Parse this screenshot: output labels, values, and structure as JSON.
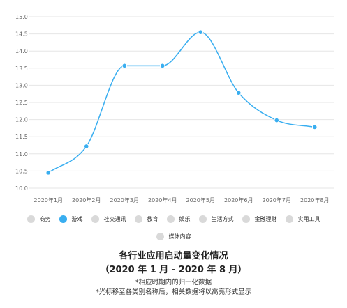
{
  "chart_data": {
    "type": "line",
    "categories": [
      "2020年1月",
      "2020年2月",
      "2020年3月",
      "2020年4月",
      "2020年5月",
      "2020年6月",
      "2020年7月",
      "2020年8月"
    ],
    "series": [
      {
        "name": "游戏",
        "values": [
          10.45,
          11.22,
          13.57,
          13.57,
          14.55,
          12.78,
          11.98,
          11.78
        ]
      }
    ],
    "y_ticks": [
      "15.0",
      "14.5",
      "14.0",
      "13.5",
      "13.0",
      "12.5",
      "12.0",
      "11.5",
      "11.0",
      "10.5",
      "10.0"
    ],
    "ylim": [
      10.0,
      15.0
    ],
    "grid": true,
    "title": "各行业应用启动量变化情况",
    "subtitle": "（2020 年 1 月 - 2020 年 8 月）",
    "notes": [
      "*相应时期内的归一化数据",
      "*光标移至各类别名称后，相关数据将以高亮形式显示"
    ],
    "legend_position": "bottom"
  },
  "legend": {
    "row1": [
      {
        "label": "商务",
        "active": false
      },
      {
        "label": "游戏",
        "active": true
      },
      {
        "label": "社交通讯",
        "active": false
      },
      {
        "label": "教育",
        "active": false
      },
      {
        "label": "娱乐",
        "active": false
      },
      {
        "label": "生活方式",
        "active": false
      },
      {
        "label": "金融理财",
        "active": false
      },
      {
        "label": "实用工具",
        "active": false
      }
    ],
    "row2": [
      {
        "label": "媒体内容",
        "active": false
      }
    ]
  },
  "colors": {
    "accent": "#39aef0",
    "inactive": "#d9d9d9",
    "grid": "#e6e6e6"
  }
}
